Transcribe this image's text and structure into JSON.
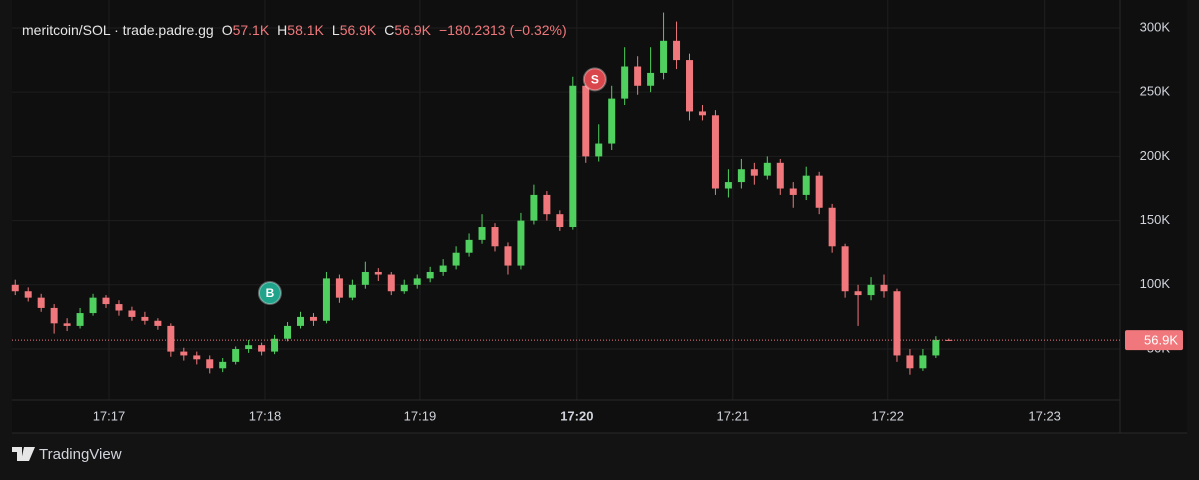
{
  "header": {
    "symbol": "meritcoin/SOL · trade.padre.gg",
    "ohlc": [
      {
        "key": "O",
        "value": "57.1K"
      },
      {
        "key": "H",
        "value": "58.1K"
      },
      {
        "key": "L",
        "value": "56.9K"
      },
      {
        "key": "C",
        "value": "56.9K"
      }
    ],
    "change": "−180.2313 (−0.32%)"
  },
  "branding": "TradingView",
  "chart_data": {
    "type": "candlestick",
    "up_color": "#4fd05f",
    "down_color": "#f0787c",
    "open": [
      100000,
      95000,
      90000,
      82000,
      70000,
      68000,
      78000,
      90000,
      85000,
      80000,
      75000,
      72000,
      68000,
      48000,
      45000,
      42000,
      35000,
      40000,
      50000,
      53000,
      48000,
      58000,
      68000,
      75000,
      72000,
      105000,
      90000,
      100000,
      110000,
      108000,
      95000,
      100000,
      105000,
      110000,
      115000,
      125000,
      135000,
      145000,
      130000,
      115000,
      150000,
      170000,
      155000,
      145000,
      255000,
      200000,
      210000,
      245000,
      270000,
      255000,
      265000,
      290000,
      275000,
      235000,
      232000,
      175000,
      180000,
      190000,
      185000,
      195000,
      175000,
      170000,
      185000,
      160000,
      130000,
      95000,
      92000,
      100000,
      95000,
      45000,
      35000,
      45000,
      57100
    ],
    "high": [
      104000,
      98000,
      93000,
      85000,
      74000,
      82000,
      93000,
      92000,
      88000,
      83000,
      79000,
      74000,
      70000,
      51000,
      48000,
      45000,
      43000,
      52000,
      57000,
      55000,
      61000,
      71000,
      79000,
      78000,
      110000,
      108000,
      104000,
      118000,
      113000,
      110000,
      104000,
      108000,
      114000,
      120000,
      130000,
      140000,
      155000,
      148000,
      133000,
      156000,
      178000,
      173000,
      158000,
      262000,
      258000,
      225000,
      255000,
      285000,
      278000,
      285000,
      312000,
      305000,
      280000,
      240000,
      236000,
      190000,
      198000,
      195000,
      200000,
      198000,
      180000,
      192000,
      188000,
      163000,
      132000,
      100000,
      106000,
      108000,
      97000,
      50000,
      50000,
      60000,
      58100
    ],
    "low": [
      92000,
      87000,
      79000,
      62000,
      64000,
      66000,
      76000,
      82000,
      76000,
      72000,
      69000,
      65000,
      44000,
      41000,
      38000,
      31000,
      32000,
      38000,
      47000,
      45000,
      46000,
      56000,
      66000,
      68000,
      70000,
      86000,
      88000,
      97000,
      103000,
      92000,
      93000,
      97000,
      102000,
      107000,
      112000,
      122000,
      132000,
      126000,
      108000,
      112000,
      147000,
      150000,
      142000,
      143000,
      195000,
      196000,
      205000,
      240000,
      248000,
      250000,
      260000,
      268000,
      228000,
      228000,
      170000,
      168000,
      175000,
      178000,
      182000,
      170000,
      160000,
      166000,
      155000,
      125000,
      90000,
      68000,
      88000,
      90000,
      40000,
      30000,
      33000,
      43000,
      56900
    ],
    "close": [
      95000,
      90000,
      82000,
      70000,
      68000,
      78000,
      90000,
      85000,
      80000,
      75000,
      72000,
      68000,
      48000,
      45000,
      42000,
      35000,
      40000,
      50000,
      53000,
      48000,
      58000,
      68000,
      75000,
      72000,
      105000,
      90000,
      100000,
      110000,
      108000,
      95000,
      100000,
      105000,
      110000,
      115000,
      125000,
      135000,
      145000,
      130000,
      115000,
      150000,
      170000,
      155000,
      145000,
      255000,
      200000,
      210000,
      245000,
      270000,
      255000,
      265000,
      290000,
      275000,
      235000,
      232000,
      175000,
      180000,
      190000,
      185000,
      195000,
      175000,
      170000,
      185000,
      160000,
      130000,
      95000,
      92000,
      100000,
      95000,
      45000,
      35000,
      45000,
      57100,
      56900
    ],
    "xlim": [
      -0.25,
      85.2
    ],
    "xticks": [
      {
        "value": 7.23,
        "label": "17:17"
      },
      {
        "value": 19.26,
        "label": "17:18"
      },
      {
        "value": 31.21,
        "label": "17:19"
      },
      {
        "value": 43.31,
        "label": "17:20",
        "bold": true
      },
      {
        "value": 55.34,
        "label": "17:21"
      },
      {
        "value": 67.29,
        "label": "17:22"
      },
      {
        "value": 79.39,
        "label": "17:23"
      }
    ],
    "ylim": [
      10300,
      314000
    ],
    "yticks": [
      {
        "value": 50000,
        "label": "50K"
      },
      {
        "value": 100000,
        "label": "100K"
      },
      {
        "value": 150000,
        "label": "150K"
      },
      {
        "value": 200000,
        "label": "200K"
      },
      {
        "value": 250000,
        "label": "250K"
      },
      {
        "value": 300000,
        "label": "300K"
      }
    ],
    "grid": true,
    "last_price": {
      "value": 56900,
      "label": "56.9K",
      "color": "#f0787c"
    },
    "annotations": [
      {
        "label": "B",
        "x": 19.64,
        "y": 93600,
        "color": "#1fa38a"
      },
      {
        "label": "S",
        "x": 44.7,
        "y": 260000,
        "color": "#d9474c"
      }
    ]
  }
}
